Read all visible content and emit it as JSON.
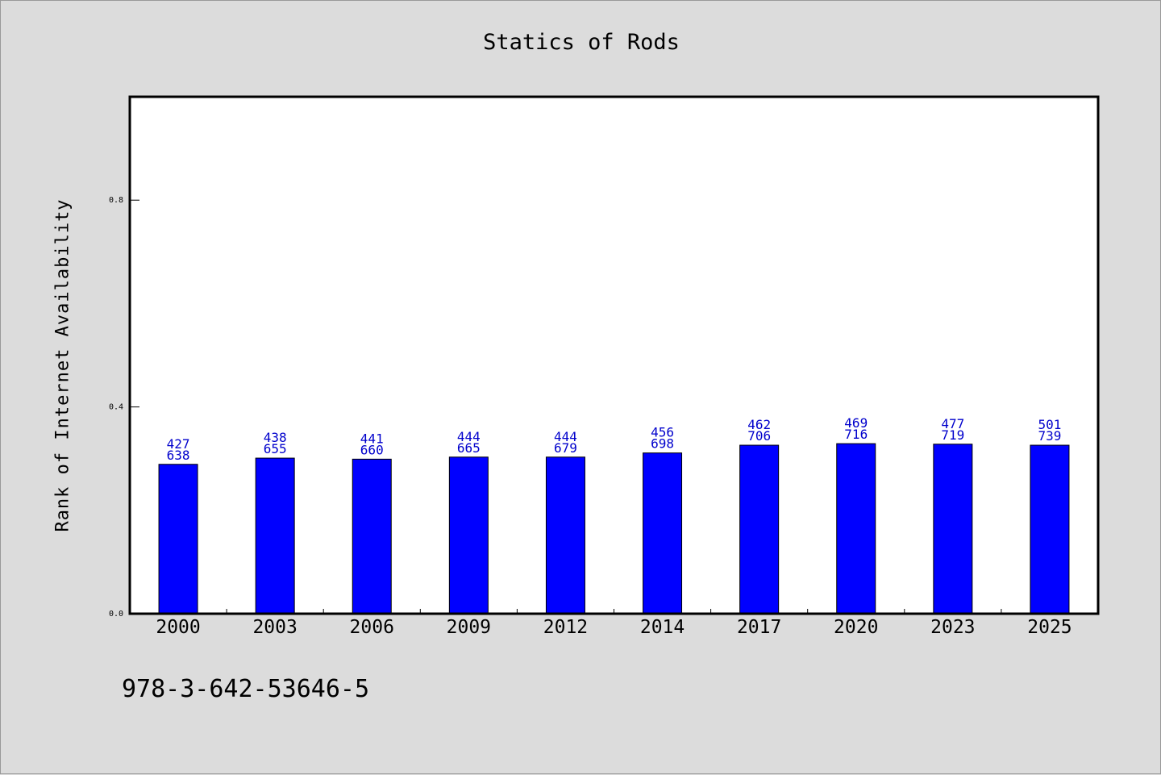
{
  "chart_data": {
    "type": "bar",
    "title": "Statics of Rods",
    "xlabel": "",
    "ylabel": "Rank of Internet Availability",
    "ylim": [
      0,
      1.0
    ],
    "y_ticks": [
      "0.0",
      "0.4",
      "0.8"
    ],
    "y_tick_values": [
      0.0,
      0.4,
      0.8
    ],
    "categories": [
      "2000",
      "2003",
      "2006",
      "2009",
      "2012",
      "2014",
      "2017",
      "2020",
      "2023",
      "2025"
    ],
    "values": [
      0.289,
      0.301,
      0.299,
      0.303,
      0.303,
      0.311,
      0.326,
      0.329,
      0.328,
      0.326
    ],
    "data_labels": [
      [
        "427",
        "638"
      ],
      [
        "438",
        "655"
      ],
      [
        "441",
        "660"
      ],
      [
        "444",
        "665"
      ],
      [
        "444",
        "679"
      ],
      [
        "456",
        "698"
      ],
      [
        "462",
        "706"
      ],
      [
        "469",
        "716"
      ],
      [
        "477",
        "719"
      ],
      [
        "501",
        "739"
      ]
    ],
    "bar_color": "#0000ff",
    "label_color": "#0000cc",
    "grid": false
  },
  "footer": {
    "code": "978-3-642-53646-5"
  }
}
